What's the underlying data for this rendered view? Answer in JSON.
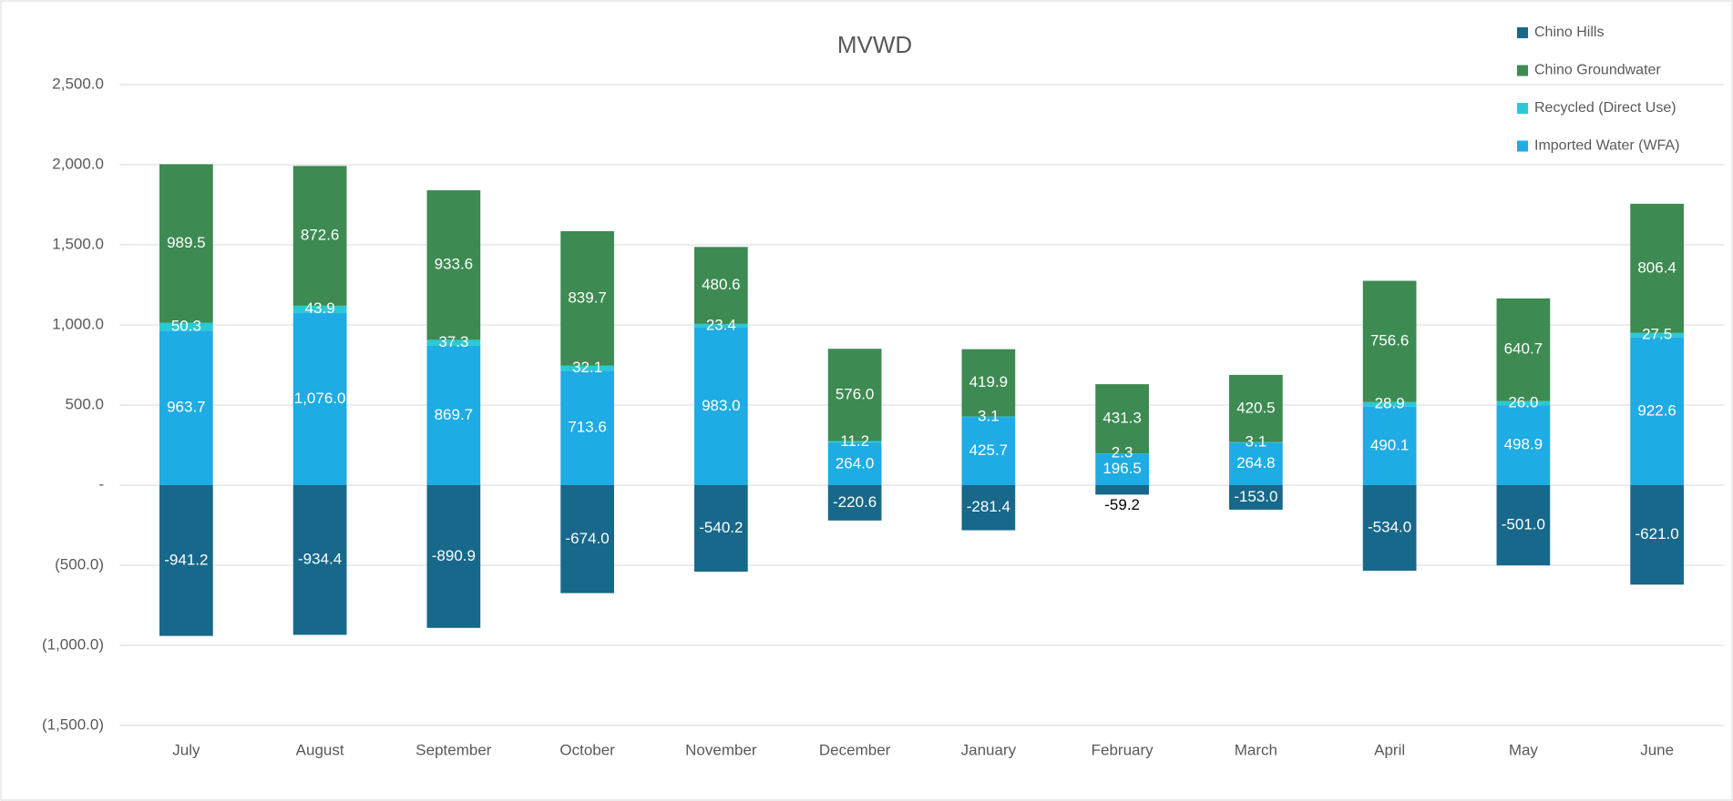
{
  "chart_data": {
    "type": "bar",
    "stacked": true,
    "title": "MVWD",
    "categories": [
      "July",
      "August",
      "September",
      "October",
      "November",
      "December",
      "January",
      "February",
      "March",
      "April",
      "May",
      "June"
    ],
    "series": [
      {
        "name": "Chino Hills",
        "color": "#17688a",
        "values": [
          -941.2,
          -934.4,
          -890.9,
          -674.0,
          -540.2,
          -220.6,
          -281.4,
          -59.2,
          -153.0,
          -534.0,
          -501.0,
          -621.0
        ],
        "value_labels": [
          "-941.2",
          "-934.4",
          "-890.9",
          "-674.0",
          "-540.2",
          "-220.6",
          "-281.4",
          "-59.2",
          "-153.0",
          "-534.0",
          "-501.0",
          "-621.0"
        ]
      },
      {
        "name": "Chino Groundwater",
        "color": "#3d8a52",
        "values": [
          989.5,
          872.6,
          933.6,
          839.7,
          480.6,
          576.0,
          419.9,
          431.3,
          420.5,
          756.6,
          640.7,
          806.4
        ],
        "value_labels": [
          "989.5",
          "872.6",
          "933.6",
          "839.7",
          "480.6",
          "576.0",
          "419.9",
          "431.3",
          "420.5",
          "756.6",
          "640.7",
          "806.4"
        ]
      },
      {
        "name": "Recycled (Direct Use)",
        "color": "#2ac9d6",
        "values": [
          50.3,
          43.9,
          37.3,
          32.1,
          23.4,
          11.2,
          3.1,
          2.3,
          3.1,
          28.9,
          26.0,
          27.5
        ],
        "value_labels": [
          "50.3",
          "43.9",
          "37.3",
          "32.1",
          "23.4",
          "11.2",
          "3.1",
          "2.3",
          "3.1",
          "28.9",
          "26.0",
          "27.5"
        ]
      },
      {
        "name": "Imported Water (WFA)",
        "color": "#1fabe3",
        "values": [
          963.7,
          1076.0,
          869.7,
          713.6,
          983.0,
          264.0,
          425.7,
          196.5,
          264.8,
          490.1,
          498.9,
          922.6
        ],
        "value_labels": [
          "963.7",
          "1,076.0",
          "869.7",
          "713.6",
          "983.0",
          "264.0",
          "425.7",
          "196.5",
          "264.8",
          "490.1",
          "498.9",
          "922.6"
        ]
      }
    ],
    "ylim": [
      -1500,
      2500
    ],
    "yticks": [
      {
        "value": 2500,
        "label": "2,500.0"
      },
      {
        "value": 2000,
        "label": "2,000.0"
      },
      {
        "value": 1500,
        "label": "1,500.0"
      },
      {
        "value": 1000,
        "label": "1,000.0"
      },
      {
        "value": 500,
        "label": "500.0"
      },
      {
        "value": 0,
        "label": "-"
      },
      {
        "value": -500,
        "label": "(500.0)"
      },
      {
        "value": -1000,
        "label": "(1,000.0)"
      },
      {
        "value": -1500,
        "label": "(1,500.0)"
      }
    ],
    "grid": true,
    "legend": "top-right"
  }
}
